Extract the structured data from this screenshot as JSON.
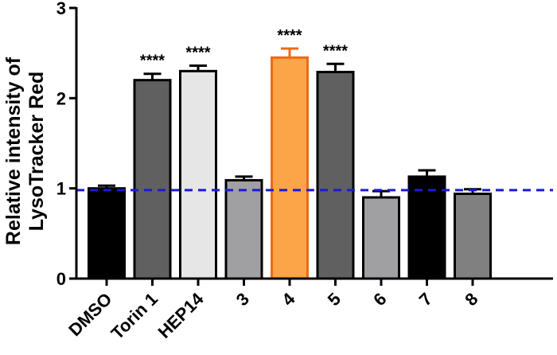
{
  "chart_data": {
    "type": "bar",
    "ylabel_lines": [
      "Relative intensity of",
      "LysoTracker Red"
    ],
    "xlabel": "",
    "categories": [
      "DMSO",
      "Torin 1",
      "HEP14",
      "3",
      "4",
      "5",
      "6",
      "7",
      "8"
    ],
    "values": [
      1.0,
      2.2,
      2.3,
      1.09,
      2.45,
      2.29,
      0.9,
      1.13,
      0.94
    ],
    "errors": [
      0.03,
      0.07,
      0.06,
      0.04,
      0.1,
      0.09,
      0.07,
      0.07,
      0.05
    ],
    "colors": [
      "#000000",
      "#606060",
      "#e6e6e6",
      "#a0a0a3",
      "#fba548",
      "#606060",
      "#a0a0a3",
      "#000000",
      "#808080"
    ],
    "edge_colors": [
      "#000000",
      "#000000",
      "#000000",
      "#000000",
      "#f06a12",
      "#000000",
      "#000000",
      "#000000",
      "#000000"
    ],
    "significance": [
      "",
      "****",
      "****",
      "",
      "****",
      "****",
      "",
      "",
      ""
    ],
    "yticks": [
      "0",
      "1",
      "2",
      "3"
    ],
    "ylim": [
      0,
      3
    ],
    "reference_line": {
      "y": 0.98,
      "color": "#1a1ad6",
      "style": "dashed"
    },
    "grid": false
  }
}
